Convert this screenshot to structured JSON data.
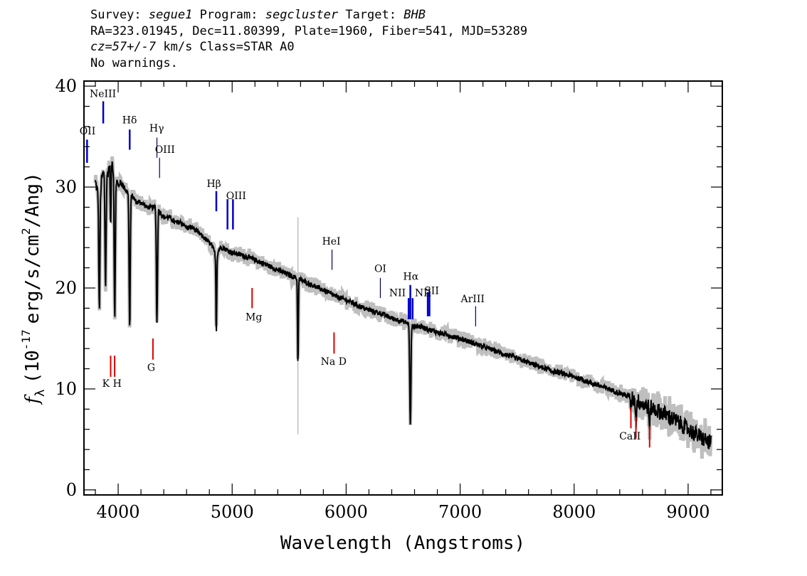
{
  "header": {
    "survey_label": "Survey:",
    "survey": "segue1",
    "program_label": "Program:",
    "program": "segcluster",
    "target_label": "Target:",
    "target": "BHB",
    "line2": "RA=323.01945, Dec=11.80399, Plate=1960, Fiber=541, MJD=53289",
    "cz": "cz=57+/-7",
    "line3_rest": "km/s Class=STAR A0",
    "line4": "No warnings."
  },
  "chart_data": {
    "type": "line",
    "xlabel": "Wavelength (Angstroms)",
    "ylabel_main": "f",
    "ylabel_sub": "λ",
    "ylabel_rest": "(10",
    "ylabel_exp1": "-17",
    "ylabel_mid": "erg/s/cm",
    "ylabel_exp2": "2",
    "ylabel_end": "/Ang)",
    "xlim": [
      3700,
      9300
    ],
    "ylim": [
      -0.5,
      40.5
    ],
    "x_ticks": [
      4000,
      5000,
      6000,
      7000,
      8000,
      9000
    ],
    "y_ticks": [
      0,
      10,
      20,
      30,
      40
    ],
    "colors": {
      "flux": "#000000",
      "noise": "#bfbfbf",
      "emission": "#0000cc",
      "absorption": "#dd0000"
    },
    "series": [
      {
        "x": [
          3800,
          3820,
          3840,
          3860,
          3880,
          3900,
          3920,
          3940,
          3960,
          3980,
          4000,
          4020,
          4050,
          4080,
          4101,
          4130,
          4160,
          4200,
          4250,
          4300,
          4340,
          4370,
          4400,
          4450,
          4500,
          4550,
          4600,
          4650,
          4700,
          4750,
          4800,
          4830,
          4861,
          4890,
          4920,
          4950,
          5000,
          5100,
          5200,
          5300,
          5400,
          5500,
          5600,
          5700,
          5800,
          5900,
          6000,
          6100,
          6200,
          6300,
          6400,
          6500,
          6540,
          6563,
          6590,
          6650,
          6700,
          6800,
          6900,
          7000,
          7100,
          7200,
          7300,
          7400,
          7500,
          7600,
          7700,
          7800,
          7900,
          8000,
          8100,
          8200,
          8300,
          8400,
          8500,
          8600,
          8700,
          8800,
          8900,
          9000,
          9100,
          9200
        ],
        "y": [
          30.5,
          29.5,
          29.5,
          31,
          31.5,
          31,
          32,
          32.5,
          32,
          31,
          30,
          30.5,
          30,
          29.5,
          29.5,
          29,
          28.5,
          28.5,
          28,
          28,
          28,
          27.5,
          27,
          27,
          26.5,
          26.5,
          26,
          26,
          25.5,
          25,
          24.5,
          24,
          23,
          24,
          24,
          23.8,
          23.5,
          23.2,
          22.8,
          22.3,
          21.8,
          21.3,
          20.8,
          20.3,
          19.8,
          19.2,
          18.8,
          18.3,
          17.8,
          17.5,
          17,
          16.7,
          16.5,
          16.3,
          16.2,
          16.2,
          16,
          15.6,
          15.3,
          15,
          14.6,
          14.2,
          13.8,
          13.4,
          13,
          12.6,
          12.2,
          11.8,
          11.5,
          11.2,
          10.8,
          10.4,
          10,
          9.6,
          9.2,
          8.5,
          8,
          7.5,
          6.8,
          6,
          5.3,
          4.6
        ]
      }
    ],
    "absorption_lines": [
      {
        "x": 3835,
        "depth": 11.5
      },
      {
        "x": 3889,
        "depth": 11.0
      },
      {
        "x": 3934,
        "depth": 6.5
      },
      {
        "x": 3970,
        "depth": 14.0
      },
      {
        "x": 4101,
        "depth": 13.5
      },
      {
        "x": 4340,
        "depth": 11.5
      },
      {
        "x": 4861,
        "depth": 7.5
      },
      {
        "x": 5577,
        "depth": 8.5
      },
      {
        "x": 6563,
        "depth": 10.0
      },
      {
        "x": 8498,
        "depth": 1.5
      },
      {
        "x": 8542,
        "depth": 2.5
      },
      {
        "x": 8662,
        "depth": 2.5
      }
    ],
    "emission_lines": [
      {
        "label": "OII",
        "x": 3727,
        "y_bottom": 32.4,
        "y_top": 34.7,
        "label_x": 3731,
        "label_y": 35.2
      },
      {
        "label": "NeIII",
        "x": 3869,
        "y_bottom": 36.3,
        "y_top": 38.5,
        "label_x": 3866,
        "label_y": 38.9
      },
      {
        "label": "Hδ",
        "x": 4101,
        "y_bottom": 33.7,
        "y_top": 35.7,
        "label_x": 4100,
        "label_y": 36.3
      },
      {
        "label": "Hγ",
        "x": 4340,
        "y_bottom": 32.9,
        "y_top": 34.9,
        "label_x": 4338,
        "label_y": 35.5
      },
      {
        "label": "OIII",
        "x": 4363,
        "y_bottom": 30.9,
        "y_top": 32.9,
        "label_x": 4410,
        "label_y": 33.4
      },
      {
        "label": "Hβ",
        "x": 4861,
        "y_bottom": 27.6,
        "y_top": 29.6,
        "label_x": 4840,
        "label_y": 30.0
      },
      {
        "label": "OIII",
        "x": 4959,
        "y_bottom": 25.8,
        "y_top": 28.8,
        "label_x": 5035,
        "label_y": 28.8
      },
      {
        "label": "OIII",
        "x": 5007,
        "y_bottom": 25.8,
        "y_top": 28.8,
        "label_x": 5035,
        "label_y": 28.8
      },
      {
        "label": "HeI",
        "x": 5876,
        "y_bottom": 21.8,
        "y_top": 23.8,
        "label_x": 5870,
        "label_y": 24.3
      },
      {
        "label": "OI",
        "x": 6300,
        "y_bottom": 19.0,
        "y_top": 21.0,
        "label_x": 6300,
        "label_y": 21.6
      },
      {
        "label": "NII",
        "x": 6548,
        "y_bottom": 16.9,
        "y_top": 19.0,
        "label_x": 6450,
        "label_y": 19.2
      },
      {
        "label": "Hα",
        "x": 6563,
        "y_bottom": 16.9,
        "y_top": 20.3,
        "label_x": 6568,
        "label_y": 20.8
      },
      {
        "label": "NII",
        "x": 6583,
        "y_bottom": 16.9,
        "y_top": 19.0,
        "label_x": 6675,
        "label_y": 19.2
      },
      {
        "label": "SII",
        "x": 6716,
        "y_bottom": 17.2,
        "y_top": 19.6,
        "label_x": 6750,
        "label_y": 19.4
      },
      {
        "label": "SII",
        "x": 6731,
        "y_bottom": 17.2,
        "y_top": 19.6,
        "label_x": 6750,
        "label_y": 19.4
      },
      {
        "label": "ArIII",
        "x": 7136,
        "y_bottom": 16.2,
        "y_top": 18.2,
        "label_x": 7110,
        "label_y": 18.6
      }
    ],
    "absorption_markers": [
      {
        "label": "K",
        "x": 3934,
        "y_top": 13.3,
        "y_bottom": 11.2
      },
      {
        "label": "H",
        "x": 3969,
        "y_top": 13.3,
        "y_bottom": 11.2
      },
      {
        "label": "G",
        "x": 4305,
        "y_top": 15.0,
        "y_bottom": 12.9
      },
      {
        "label": "Mg",
        "x": 5175,
        "y_top": 20.0,
        "y_bottom": 18.0
      },
      {
        "label": "Na D",
        "x": 5894,
        "y_top": 15.6,
        "y_bottom": 13.5
      },
      {
        "label": "CaII",
        "x": 8498,
        "y_top": 8.2,
        "y_bottom": 6.1
      },
      {
        "label": "CaII",
        "x": 8542,
        "y_top": 7.2,
        "y_bottom": 5.1
      },
      {
        "label": "CaII",
        "x": 8662,
        "y_top": 6.3,
        "y_bottom": 4.2
      }
    ],
    "absorption_marker_labels": [
      {
        "label": "K H",
        "x": 3945,
        "y": 10.2
      },
      {
        "label": "G",
        "x": 4290,
        "y": 11.8
      },
      {
        "label": "Mg",
        "x": 5190,
        "y": 16.8
      },
      {
        "label": "Na  D",
        "x": 5890,
        "y": 12.4
      },
      {
        "label": "CaII",
        "x": 8490,
        "y": 5.0
      }
    ]
  }
}
